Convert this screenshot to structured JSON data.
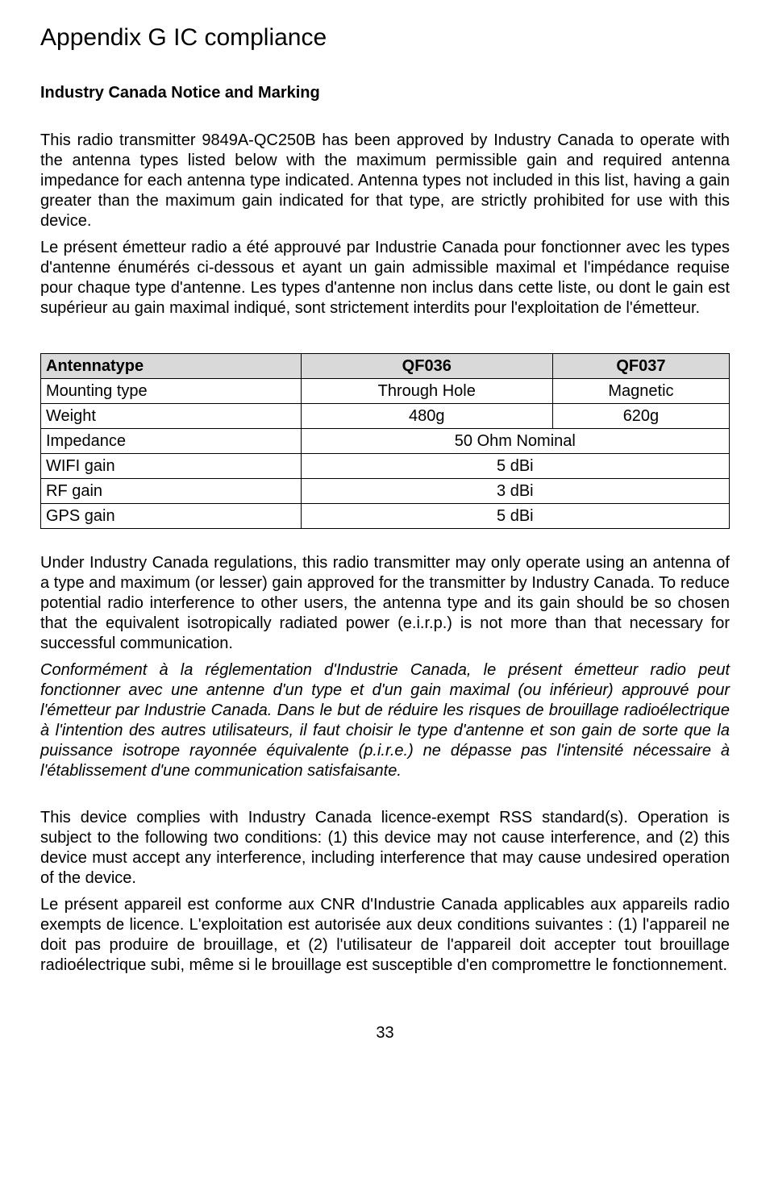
{
  "title": "Appendix G   IC compliance",
  "subheading": "Industry Canada Notice and Marking",
  "para1": "This radio transmitter 9849A-QC250B has been approved by Industry Canada to operate with the antenna types listed below with the maximum permissible gain and required antenna impedance for each antenna type indicated. Antenna types not included in this list, having a gain greater than the maximum gain indicated for that type, are strictly prohibited for use with this device.",
  "para2": "Le présent émetteur radio a été approuvé par Industrie Canada pour fonctionner avec les types d'antenne énumérés ci-dessous et ayant un gain admissible maximal et l'impédance requise pour chaque type d'antenne. Les types d'antenne non inclus dans cette liste, ou dont le gain est supérieur au gain maximal indiqué, sont strictement interdits pour l'exploitation de l'émetteur.",
  "table": {
    "headers": [
      "Antennatype",
      "QF036",
      "QF037"
    ],
    "rows": [
      {
        "label": "Mounting type",
        "c1": "Through Hole",
        "c2": "Magnetic",
        "merged": false
      },
      {
        "label": "Weight",
        "c1": "480g",
        "c2": "620g",
        "merged": false
      },
      {
        "label": "Impedance",
        "c1": "50 Ohm Nominal",
        "c2": "",
        "merged": true
      },
      {
        "label": "WIFI gain",
        "c1": "5 dBi",
        "c2": "",
        "merged": true
      },
      {
        "label": "RF gain",
        "c1": "3 dBi",
        "c2": "",
        "merged": true
      },
      {
        "label": "GPS gain",
        "c1": "5 dBi",
        "c2": "",
        "merged": true
      }
    ],
    "header_bg": "#d9d9d9",
    "border_color": "#000000"
  },
  "para3": "Under Industry Canada regulations, this radio transmitter may only operate using an antenna of a type and maximum (or lesser) gain approved for the transmitter by Industry Canada. To reduce potential radio interference to other users, the antenna type and its gain should be so chosen that the equivalent isotropically radiated power (e.i.r.p.) is not more than that necessary for successful communication.",
  "para4": "Conformément à la réglementation d'Industrie Canada, le présent émetteur radio peut fonctionner avec une antenne d'un type et d'un gain maximal (ou inférieur) approuvé pour l'émetteur par Industrie Canada. Dans le but de réduire les risques de brouillage radioélectrique à l'intention des autres utilisateurs, il faut choisir le type d'antenne et son gain de sorte que la puissance isotrope rayonnée équivalente (p.i.r.e.) ne dépasse pas l'intensité nécessaire à l'établissement d'une communication satisfaisante.",
  "para5": "This device complies with Industry Canada licence-exempt RSS standard(s). Operation is subject to the following two conditions: (1) this device may not cause interference, and (2) this device must accept any interference, including interference that may cause undesired operation of the device.",
  "para6": "Le présent appareil est conforme aux CNR d'Industrie Canada applicables aux appareils radio exempts de licence. L'exploitation est autorisée aux deux conditions suivantes : (1) l'appareil ne doit pas produire de brouillage, et (2) l'utilisateur de l'appareil doit accepter tout brouillage radioélectrique subi, même si le brouillage est susceptible d'en compromettre le fonctionnement.",
  "pagenum": "33"
}
